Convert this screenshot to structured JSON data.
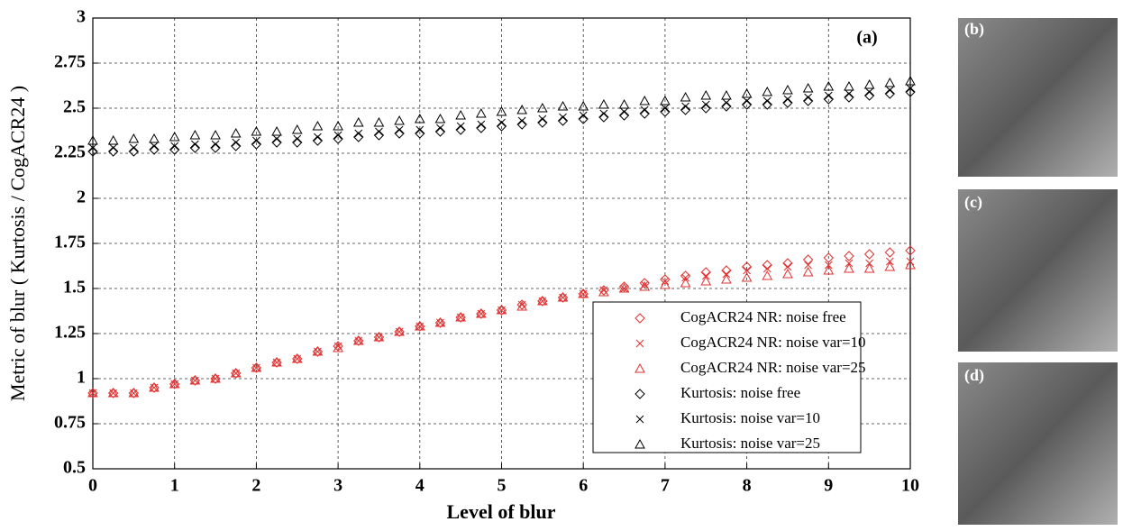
{
  "chart_data": {
    "type": "scatter",
    "xlabel": "Level of blur",
    "ylabel": "Metric of blur ( Kurtosis / CogACR24 )",
    "annotation": "(a)",
    "xlim": [
      0,
      10
    ],
    "xticks": [
      0,
      1,
      2,
      3,
      4,
      5,
      6,
      7,
      8,
      9,
      10
    ],
    "ylim": [
      0.5,
      3
    ],
    "yticks": [
      0.5,
      0.75,
      1,
      1.25,
      1.5,
      1.75,
      2,
      2.25,
      2.5,
      2.75,
      3
    ],
    "grid": true,
    "legend": "lower right",
    "x": [
      0,
      0.25,
      0.5,
      0.75,
      1,
      1.25,
      1.5,
      1.75,
      2,
      2.25,
      2.5,
      2.75,
      3,
      3.25,
      3.5,
      3.75,
      4,
      4.25,
      4.5,
      4.75,
      5,
      5.25,
      5.5,
      5.75,
      6,
      6.25,
      6.5,
      6.75,
      7,
      7.25,
      7.5,
      7.75,
      8,
      8.25,
      8.5,
      8.75,
      9,
      9.25,
      9.5,
      9.75,
      10
    ],
    "series": [
      {
        "name": "CogACR24 NR: noise free",
        "color": "#e03030",
        "marker": "diamond",
        "values": [
          0.92,
          0.92,
          0.92,
          0.95,
          0.97,
          0.99,
          1.0,
          1.03,
          1.06,
          1.09,
          1.11,
          1.15,
          1.18,
          1.21,
          1.23,
          1.26,
          1.29,
          1.31,
          1.34,
          1.36,
          1.38,
          1.41,
          1.43,
          1.45,
          1.47,
          1.49,
          1.51,
          1.53,
          1.55,
          1.57,
          1.59,
          1.6,
          1.62,
          1.63,
          1.64,
          1.66,
          1.67,
          1.68,
          1.69,
          1.7,
          1.71
        ]
      },
      {
        "name": "CogACR24 NR: noise var=10",
        "color": "#e03030",
        "marker": "x",
        "values": [
          0.92,
          0.92,
          0.92,
          0.95,
          0.97,
          0.99,
          1.0,
          1.03,
          1.06,
          1.09,
          1.11,
          1.15,
          1.18,
          1.21,
          1.23,
          1.26,
          1.29,
          1.31,
          1.34,
          1.36,
          1.38,
          1.41,
          1.43,
          1.45,
          1.47,
          1.49,
          1.5,
          1.52,
          1.54,
          1.56,
          1.57,
          1.58,
          1.6,
          1.61,
          1.62,
          1.63,
          1.63,
          1.64,
          1.64,
          1.65,
          1.65
        ]
      },
      {
        "name": "CogACR24 NR: noise var=25",
        "color": "#e03030",
        "marker": "triangle",
        "values": [
          0.92,
          0.92,
          0.92,
          0.95,
          0.97,
          0.99,
          1.0,
          1.03,
          1.06,
          1.09,
          1.11,
          1.15,
          1.17,
          1.21,
          1.23,
          1.26,
          1.29,
          1.31,
          1.34,
          1.36,
          1.38,
          1.4,
          1.43,
          1.45,
          1.47,
          1.48,
          1.5,
          1.51,
          1.52,
          1.53,
          1.54,
          1.55,
          1.56,
          1.57,
          1.58,
          1.59,
          1.6,
          1.61,
          1.61,
          1.62,
          1.63
        ]
      },
      {
        "name": "Kurtosis: noise free",
        "color": "#000000",
        "marker": "diamond",
        "values": [
          2.26,
          2.26,
          2.26,
          2.27,
          2.27,
          2.28,
          2.28,
          2.29,
          2.3,
          2.31,
          2.31,
          2.32,
          2.33,
          2.34,
          2.35,
          2.36,
          2.36,
          2.37,
          2.38,
          2.39,
          2.4,
          2.41,
          2.42,
          2.43,
          2.44,
          2.45,
          2.46,
          2.47,
          2.48,
          2.49,
          2.5,
          2.51,
          2.52,
          2.52,
          2.53,
          2.54,
          2.55,
          2.56,
          2.57,
          2.58,
          2.59
        ]
      },
      {
        "name": "Kurtosis: noise var=10",
        "color": "#000000",
        "marker": "x",
        "values": [
          2.28,
          2.28,
          2.28,
          2.29,
          2.29,
          2.3,
          2.3,
          2.31,
          2.32,
          2.33,
          2.33,
          2.34,
          2.35,
          2.36,
          2.37,
          2.38,
          2.38,
          2.39,
          2.4,
          2.41,
          2.42,
          2.43,
          2.44,
          2.45,
          2.46,
          2.47,
          2.48,
          2.49,
          2.5,
          2.51,
          2.52,
          2.53,
          2.54,
          2.54,
          2.55,
          2.56,
          2.57,
          2.58,
          2.59,
          2.6,
          2.61
        ]
      },
      {
        "name": "Kurtosis: noise var=25",
        "color": "#000000",
        "marker": "triangle",
        "values": [
          2.32,
          2.32,
          2.33,
          2.33,
          2.34,
          2.35,
          2.35,
          2.36,
          2.37,
          2.37,
          2.38,
          2.4,
          2.4,
          2.42,
          2.42,
          2.43,
          2.44,
          2.44,
          2.46,
          2.47,
          2.48,
          2.49,
          2.5,
          2.51,
          2.51,
          2.52,
          2.52,
          2.54,
          2.54,
          2.56,
          2.57,
          2.57,
          2.58,
          2.59,
          2.6,
          2.61,
          2.62,
          2.62,
          2.63,
          2.64,
          2.65
        ]
      }
    ]
  },
  "images": [
    {
      "label": "(b)"
    },
    {
      "label": "(c)"
    },
    {
      "label": "(d)"
    }
  ]
}
